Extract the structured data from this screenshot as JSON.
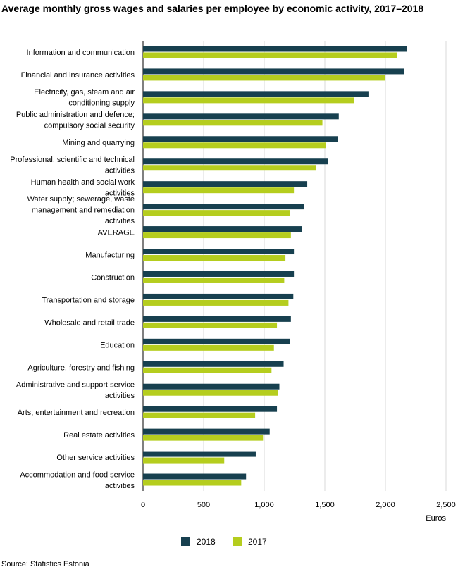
{
  "chart_data": {
    "type": "bar",
    "orientation": "horizontal",
    "title": "Average monthly gross wages and salaries per employee by economic activity, 2017–2018",
    "xlabel": "Euros",
    "xlim": [
      0,
      2500
    ],
    "xticks": [
      "0",
      "500",
      "1,000",
      "1,500",
      "2,000",
      "2,500"
    ],
    "grid": true,
    "legend_position": "bottom",
    "source": "Source: Statistics Estonia",
    "categories": [
      [
        "Information and communication"
      ],
      [
        "Financial and insurance activities"
      ],
      [
        "Electricity, gas, steam and air",
        "conditioning supply"
      ],
      [
        "Public administration and defence;",
        "compulsory social security"
      ],
      [
        "Mining and quarrying"
      ],
      [
        "Professional, scientific and technical",
        "activities"
      ],
      [
        "Human health and social work",
        "activities"
      ],
      [
        "Water supply; sewerage, waste",
        "management and remediation",
        "activities"
      ],
      [
        "AVERAGE"
      ],
      [
        "Manufacturing"
      ],
      [
        "Construction"
      ],
      [
        "Transportation and storage"
      ],
      [
        "Wholesale and retail trade"
      ],
      [
        "Education"
      ],
      [
        "Agriculture, forestry and fishing"
      ],
      [
        "Administrative and support service",
        "activities"
      ],
      [
        "Arts, entertainment and recreation"
      ],
      [
        "Real estate activities"
      ],
      [
        "Other service activities"
      ],
      [
        "Accommodation and food service",
        "activities"
      ]
    ],
    "series": [
      {
        "name": "2018",
        "color": "#17404f",
        "values": [
          2175,
          2155,
          1860,
          1615,
          1605,
          1525,
          1355,
          1330,
          1310,
          1245,
          1245,
          1240,
          1220,
          1215,
          1160,
          1125,
          1105,
          1045,
          930,
          850
        ]
      },
      {
        "name": "2017",
        "color": "#b5cd1e",
        "values": [
          2095,
          2000,
          1740,
          1480,
          1510,
          1425,
          1245,
          1210,
          1220,
          1175,
          1165,
          1200,
          1105,
          1080,
          1060,
          1115,
          925,
          990,
          670,
          810
        ]
      }
    ]
  }
}
